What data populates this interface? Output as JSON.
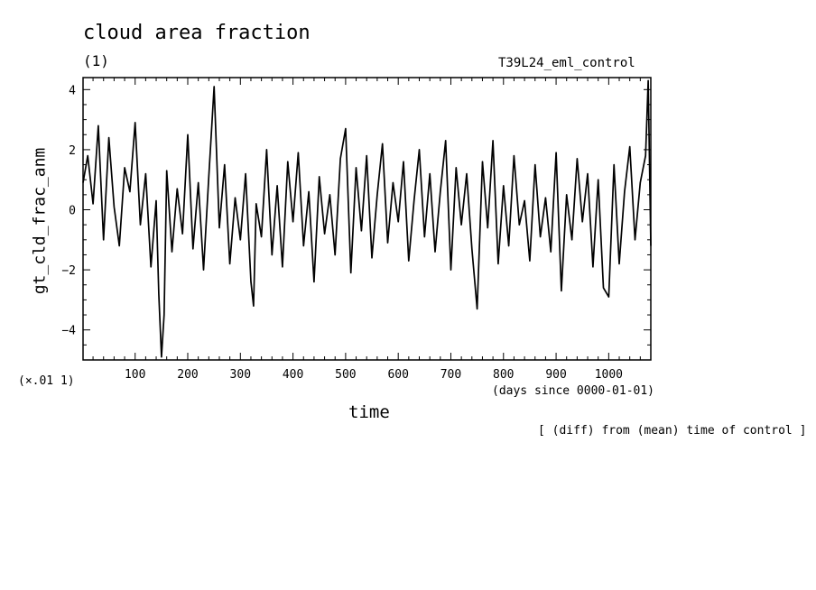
{
  "chart_data": {
    "type": "line",
    "title": "cloud area fraction",
    "units": "(1)",
    "run_label": "T39L24_eml_control",
    "ylabel": "gt_cld_frac_anm",
    "xlabel": "time",
    "x_units": "(days since 0000-01-01)",
    "scale_note": "(×.01 1)",
    "footnote": "[ (diff) from (mean) time of control ]",
    "xlim": [
      1,
      1080
    ],
    "ylim": [
      -5,
      4.4
    ],
    "x_major_ticks": [
      100,
      200,
      300,
      400,
      500,
      600,
      700,
      800,
      900,
      1000
    ],
    "x_tick_labels": [
      "100",
      "200",
      "300",
      "400",
      "500",
      "600",
      "700",
      "800",
      "900",
      "1000"
    ],
    "y_major_ticks": [
      -4,
      -2,
      0,
      2,
      4
    ],
    "y_tick_labels": [
      "−4",
      "−2",
      "0",
      "2",
      "4"
    ],
    "grid": false,
    "series": [
      {
        "x": [
          1,
          10,
          20,
          30,
          40,
          50,
          60,
          70,
          80,
          90,
          100,
          110,
          120,
          130,
          140,
          145,
          150,
          155,
          160,
          170,
          180,
          190,
          200,
          210,
          220,
          230,
          240,
          250,
          260,
          270,
          280,
          290,
          300,
          310,
          320,
          325,
          330,
          340,
          350,
          360,
          370,
          380,
          390,
          400,
          410,
          420,
          430,
          440,
          450,
          460,
          470,
          480,
          490,
          500,
          510,
          520,
          530,
          540,
          550,
          560,
          570,
          580,
          590,
          600,
          610,
          620,
          630,
          640,
          650,
          660,
          670,
          680,
          690,
          700,
          710,
          720,
          730,
          740,
          750,
          760,
          770,
          780,
          790,
          800,
          810,
          820,
          830,
          840,
          850,
          860,
          870,
          880,
          890,
          900,
          910,
          920,
          930,
          940,
          950,
          960,
          970,
          980,
          990,
          1000,
          1010,
          1020,
          1030,
          1040,
          1050,
          1060,
          1070,
          1075,
          1080
        ],
        "y": [
          0.9,
          1.8,
          0.2,
          2.8,
          -1.0,
          2.4,
          0.1,
          -1.2,
          1.4,
          0.6,
          2.9,
          -0.5,
          1.2,
          -1.9,
          0.3,
          -2.8,
          -4.9,
          -3.5,
          1.3,
          -1.4,
          0.7,
          -0.8,
          2.5,
          -1.3,
          0.9,
          -2.0,
          1.1,
          4.1,
          -0.6,
          1.5,
          -1.8,
          0.4,
          -1.0,
          1.2,
          -2.4,
          -3.2,
          0.2,
          -0.9,
          2.0,
          -1.5,
          0.8,
          -1.9,
          1.6,
          -0.4,
          1.9,
          -1.2,
          0.6,
          -2.4,
          1.1,
          -0.8,
          0.5,
          -1.5,
          1.7,
          2.7,
          -2.1,
          1.4,
          -0.7,
          1.8,
          -1.6,
          0.5,
          2.2,
          -1.1,
          0.9,
          -0.4,
          1.6,
          -1.7,
          0.3,
          2.0,
          -0.9,
          1.2,
          -1.4,
          0.6,
          2.3,
          -2.0,
          1.4,
          -0.5,
          1.2,
          -1.3,
          -3.3,
          1.6,
          -0.6,
          2.3,
          -1.8,
          0.8,
          -1.2,
          1.8,
          -0.5,
          0.3,
          -1.7,
          1.5,
          -0.9,
          0.4,
          -1.4,
          1.9,
          -2.7,
          0.5,
          -1.0,
          1.7,
          -0.4,
          1.2,
          -1.9,
          1.0,
          -2.6,
          -2.9,
          1.5,
          -1.8,
          0.6,
          2.1,
          -1.0,
          0.9,
          1.8,
          4.3,
          -1.2
        ]
      }
    ]
  }
}
